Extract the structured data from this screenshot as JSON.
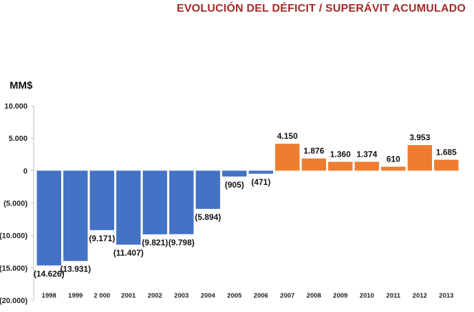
{
  "chart_data": {
    "type": "bar",
    "title": "EVOLUCIÓN DEL DÉFICIT / SUPERÁVIT ACUMULADO",
    "ylabel": "MM$",
    "xlabel": "",
    "ylim": [
      -20000,
      10000
    ],
    "yticks": [
      10000,
      5000,
      0,
      -5000,
      -10000,
      -15000,
      -20000
    ],
    "ytick_labels": [
      "10.000",
      "5.000",
      "0",
      "(5.000)",
      "(10.000)",
      "(15.000)",
      "(20.000)"
    ],
    "grid": false,
    "legend": "none",
    "categories": [
      "1998",
      "1999",
      "2 000",
      "2001",
      "2002",
      "2003",
      "2004",
      "2005",
      "2006",
      "2007",
      "2008",
      "2009",
      "2010",
      "2011",
      "2012",
      "2013"
    ],
    "values": [
      -14626,
      -13931,
      -9171,
      -11407,
      -9821,
      -9798,
      -5894,
      -905,
      -471,
      4150,
      1876,
      1360,
      1374,
      610,
      3953,
      1685
    ],
    "data_labels": [
      "(14.626)",
      "(13.931)",
      "(9.171)",
      "(11.407)",
      "(9.821)",
      "(9.798)",
      "(5.894)",
      "(905)",
      "(471)",
      "4.150",
      "1.876",
      "1.360",
      "1.374",
      "610",
      "3.953",
      "1.685"
    ],
    "colors": {
      "negative": "#4472c4",
      "positive": "#ed7d31"
    }
  }
}
